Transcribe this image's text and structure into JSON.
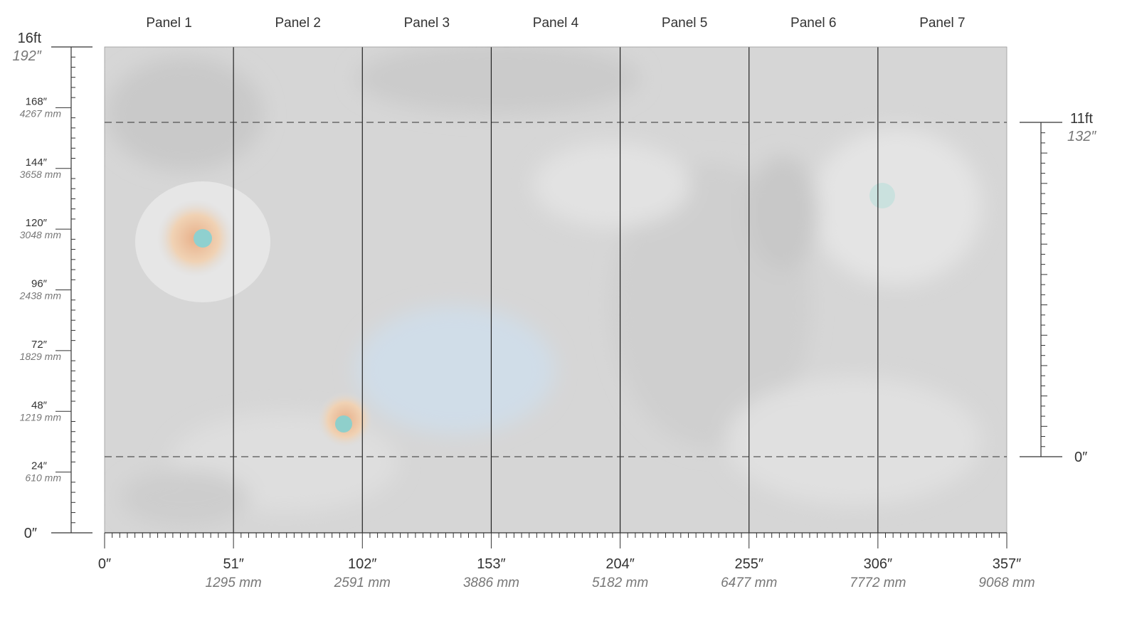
{
  "panels": [
    "Panel 1",
    "Panel 2",
    "Panel 3",
    "Panel 4",
    "Panel 5",
    "Panel 6",
    "Panel 7"
  ],
  "left_ruler": {
    "top": {
      "feet": "16ft",
      "inches": "192″"
    },
    "labels": [
      {
        "inches": "168″",
        "mm": "4267 mm"
      },
      {
        "inches": "144″",
        "mm": "3658 mm"
      },
      {
        "inches": "120″",
        "mm": "3048 mm"
      },
      {
        "inches": "96″",
        "mm": "2438 mm"
      },
      {
        "inches": "72″",
        "mm": "1829 mm"
      },
      {
        "inches": "48″",
        "mm": "1219 mm"
      },
      {
        "inches": "24″",
        "mm": "610 mm"
      }
    ],
    "bottom": "0″"
  },
  "bottom_ruler": {
    "labels": [
      {
        "inches": "0″"
      },
      {
        "inches": "51″",
        "mm": "1295 mm"
      },
      {
        "inches": "102″",
        "mm": "2591 mm"
      },
      {
        "inches": "153″",
        "mm": "3886 mm"
      },
      {
        "inches": "204″",
        "mm": "5182 mm"
      },
      {
        "inches": "255″",
        "mm": "6477 mm"
      },
      {
        "inches": "306″",
        "mm": "7772 mm"
      },
      {
        "inches": "357″",
        "mm": "9068 mm"
      }
    ]
  },
  "right_ruler": {
    "top": {
      "feet": "11ft",
      "inches": "132″"
    },
    "bottom": "0″"
  }
}
